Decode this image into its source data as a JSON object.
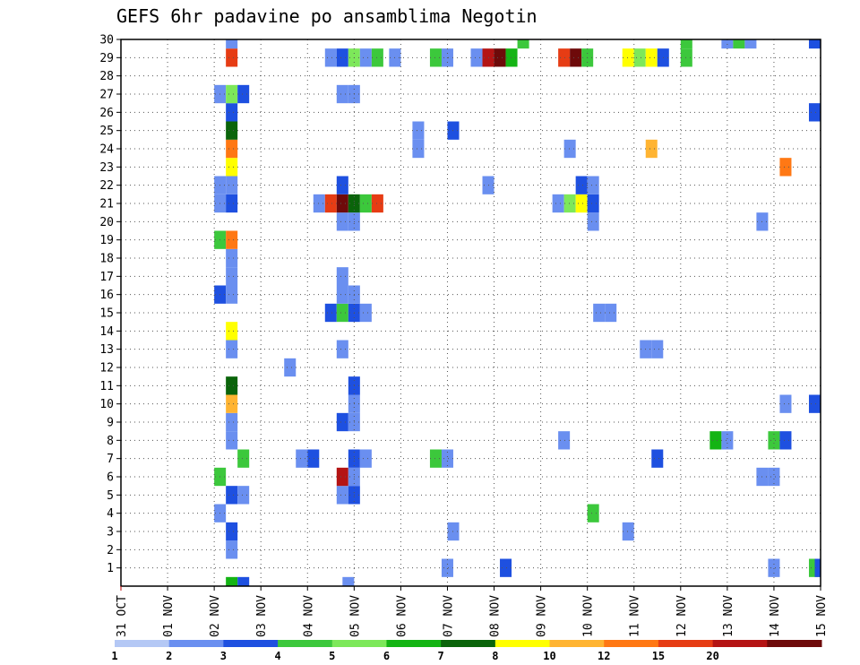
{
  "chart_data": {
    "type": "heatmap",
    "title": "GEFS 6hr padavine po ansamblima Negotin",
    "xlabel": "",
    "ylabel": "",
    "x_ticks": [
      "31 OCT",
      "01 NOV",
      "02 NOV",
      "03 NOV",
      "04 NOV",
      "05 NOV",
      "06 NOV",
      "07 NOV",
      "08 NOV",
      "09 NOV",
      "10 NOV",
      "11 NOV",
      "12 NOV",
      "13 NOV",
      "14 NOV",
      "15 NOV"
    ],
    "y_ticks": [
      1,
      2,
      3,
      4,
      5,
      6,
      7,
      8,
      9,
      10,
      11,
      12,
      13,
      14,
      15,
      16,
      17,
      18,
      19,
      20,
      21,
      22,
      23,
      24,
      25,
      26,
      27,
      28,
      29,
      30
    ],
    "x_range_days": [
      0,
      15
    ],
    "y_range": [
      0,
      30
    ],
    "grid": true,
    "colorbar": {
      "levels": [
        "1",
        "2",
        "3",
        "4",
        "5",
        "6",
        "7",
        "8",
        "10",
        "12",
        "15",
        "20",
        ""
      ],
      "colors": [
        "#b4c8f5",
        "#6a8ff0",
        "#1e50e0",
        "#3cc83c",
        "#7de85a",
        "#14b414",
        "#0a640a",
        "#ffff00",
        "#ffb432",
        "#ff7814",
        "#e63c14",
        "#b41414",
        "#6e0a0a"
      ]
    },
    "cells": [
      {
        "t": 2.375,
        "m": 0,
        "c": 5
      },
      {
        "t": 2.625,
        "m": 0,
        "c": 2
      },
      {
        "t": 4.875,
        "m": 0,
        "c": 1
      },
      {
        "t": 7.0,
        "m": 1,
        "c": 1
      },
      {
        "t": 8.25,
        "m": 1,
        "c": 2
      },
      {
        "t": 14.0,
        "m": 1,
        "c": 1
      },
      {
        "t": 14.875,
        "m": 1,
        "c": 3
      },
      {
        "t": 15.0,
        "m": 1,
        "c": 2
      },
      {
        "t": 2.375,
        "m": 2,
        "c": 1
      },
      {
        "t": 2.375,
        "m": 3,
        "c": 2
      },
      {
        "t": 7.125,
        "m": 3,
        "c": 1
      },
      {
        "t": 10.875,
        "m": 3,
        "c": 1
      },
      {
        "t": 2.125,
        "m": 4,
        "c": 1
      },
      {
        "t": 10.125,
        "m": 4,
        "c": 3
      },
      {
        "t": 2.375,
        "m": 5,
        "c": 2
      },
      {
        "t": 2.625,
        "m": 5,
        "c": 1
      },
      {
        "t": 4.75,
        "m": 5,
        "c": 1
      },
      {
        "t": 5.0,
        "m": 5,
        "c": 2
      },
      {
        "t": 2.125,
        "m": 6,
        "c": 3
      },
      {
        "t": 4.75,
        "m": 6,
        "c": 11
      },
      {
        "t": 5.0,
        "m": 6,
        "c": 1
      },
      {
        "t": 13.75,
        "m": 6,
        "c": 1
      },
      {
        "t": 14.0,
        "m": 6,
        "c": 1
      },
      {
        "t": 2.625,
        "m": 7,
        "c": 3
      },
      {
        "t": 3.875,
        "m": 7,
        "c": 1
      },
      {
        "t": 4.125,
        "m": 7,
        "c": 2
      },
      {
        "t": 5.0,
        "m": 7,
        "c": 2
      },
      {
        "t": 5.25,
        "m": 7,
        "c": 1
      },
      {
        "t": 6.75,
        "m": 7,
        "c": 3
      },
      {
        "t": 7.0,
        "m": 7,
        "c": 1
      },
      {
        "t": 11.5,
        "m": 7,
        "c": 2
      },
      {
        "t": 2.375,
        "m": 8,
        "c": 1
      },
      {
        "t": 9.5,
        "m": 8,
        "c": 1
      },
      {
        "t": 12.75,
        "m": 8,
        "c": 5
      },
      {
        "t": 13.0,
        "m": 8,
        "c": 1
      },
      {
        "t": 14.0,
        "m": 8,
        "c": 3
      },
      {
        "t": 14.25,
        "m": 8,
        "c": 2
      },
      {
        "t": 2.375,
        "m": 9,
        "c": 1
      },
      {
        "t": 4.75,
        "m": 9,
        "c": 2
      },
      {
        "t": 5.0,
        "m": 9,
        "c": 1
      },
      {
        "t": 2.375,
        "m": 10,
        "c": 8
      },
      {
        "t": 5.0,
        "m": 10,
        "c": 1
      },
      {
        "t": 14.25,
        "m": 10,
        "c": 1
      },
      {
        "t": 14.875,
        "m": 10,
        "c": 2
      },
      {
        "t": 2.375,
        "m": 11,
        "c": 6
      },
      {
        "t": 5.0,
        "m": 11,
        "c": 2
      },
      {
        "t": 3.625,
        "m": 12,
        "c": 1
      },
      {
        "t": 2.375,
        "m": 13,
        "c": 1
      },
      {
        "t": 4.75,
        "m": 13,
        "c": 1
      },
      {
        "t": 11.25,
        "m": 13,
        "c": 1
      },
      {
        "t": 11.5,
        "m": 13,
        "c": 1
      },
      {
        "t": 2.375,
        "m": 14,
        "c": 7
      },
      {
        "t": 4.5,
        "m": 15,
        "c": 2
      },
      {
        "t": 4.75,
        "m": 15,
        "c": 3
      },
      {
        "t": 5.0,
        "m": 15,
        "c": 2
      },
      {
        "t": 5.25,
        "m": 15,
        "c": 1
      },
      {
        "t": 10.25,
        "m": 15,
        "c": 1
      },
      {
        "t": 10.5,
        "m": 15,
        "c": 1
      },
      {
        "t": 2.125,
        "m": 16,
        "c": 2
      },
      {
        "t": 2.375,
        "m": 16,
        "c": 1
      },
      {
        "t": 4.75,
        "m": 16,
        "c": 1
      },
      {
        "t": 5.0,
        "m": 16,
        "c": 1
      },
      {
        "t": 2.375,
        "m": 17,
        "c": 1
      },
      {
        "t": 4.75,
        "m": 17,
        "c": 1
      },
      {
        "t": 2.375,
        "m": 18,
        "c": 1
      },
      {
        "t": 2.125,
        "m": 19,
        "c": 3
      },
      {
        "t": 2.375,
        "m": 19,
        "c": 9
      },
      {
        "t": 4.75,
        "m": 20,
        "c": 1
      },
      {
        "t": 5.0,
        "m": 20,
        "c": 1
      },
      {
        "t": 10.125,
        "m": 20,
        "c": 1
      },
      {
        "t": 13.75,
        "m": 20,
        "c": 1
      },
      {
        "t": 2.125,
        "m": 21,
        "c": 1
      },
      {
        "t": 2.375,
        "m": 21,
        "c": 2
      },
      {
        "t": 4.25,
        "m": 21,
        "c": 1
      },
      {
        "t": 4.5,
        "m": 21,
        "c": 10
      },
      {
        "t": 4.75,
        "m": 21,
        "c": 12
      },
      {
        "t": 5.0,
        "m": 21,
        "c": 6
      },
      {
        "t": 5.25,
        "m": 21,
        "c": 3
      },
      {
        "t": 5.5,
        "m": 21,
        "c": 10
      },
      {
        "t": 9.375,
        "m": 21,
        "c": 1
      },
      {
        "t": 9.625,
        "m": 21,
        "c": 4
      },
      {
        "t": 9.875,
        "m": 21,
        "c": 7
      },
      {
        "t": 10.125,
        "m": 21,
        "c": 2
      },
      {
        "t": 2.125,
        "m": 22,
        "c": 1
      },
      {
        "t": 2.375,
        "m": 22,
        "c": 1
      },
      {
        "t": 4.75,
        "m": 22,
        "c": 2
      },
      {
        "t": 7.875,
        "m": 22,
        "c": 1
      },
      {
        "t": 9.875,
        "m": 22,
        "c": 2
      },
      {
        "t": 10.125,
        "m": 22,
        "c": 1
      },
      {
        "t": 2.375,
        "m": 23,
        "c": 7
      },
      {
        "t": 14.25,
        "m": 23,
        "c": 9
      },
      {
        "t": 2.375,
        "m": 24,
        "c": 9
      },
      {
        "t": 6.375,
        "m": 24,
        "c": 1
      },
      {
        "t": 9.625,
        "m": 24,
        "c": 1
      },
      {
        "t": 11.375,
        "m": 24,
        "c": 8
      },
      {
        "t": 2.375,
        "m": 25,
        "c": 6
      },
      {
        "t": 6.375,
        "m": 25,
        "c": 1
      },
      {
        "t": 7.125,
        "m": 25,
        "c": 2
      },
      {
        "t": 2.375,
        "m": 26,
        "c": 2
      },
      {
        "t": 14.875,
        "m": 26,
        "c": 2
      },
      {
        "t": 2.125,
        "m": 27,
        "c": 1
      },
      {
        "t": 2.375,
        "m": 27,
        "c": 4
      },
      {
        "t": 2.625,
        "m": 27,
        "c": 2
      },
      {
        "t": 4.75,
        "m": 27,
        "c": 1
      },
      {
        "t": 5.0,
        "m": 27,
        "c": 1
      },
      {
        "t": 2.375,
        "m": 29,
        "c": 10
      },
      {
        "t": 4.5,
        "m": 29,
        "c": 1
      },
      {
        "t": 4.75,
        "m": 29,
        "c": 2
      },
      {
        "t": 5.0,
        "m": 29,
        "c": 4
      },
      {
        "t": 5.25,
        "m": 29,
        "c": 1
      },
      {
        "t": 5.5,
        "m": 29,
        "c": 3
      },
      {
        "t": 5.875,
        "m": 29,
        "c": 1
      },
      {
        "t": 6.75,
        "m": 29,
        "c": 3
      },
      {
        "t": 7.0,
        "m": 29,
        "c": 1
      },
      {
        "t": 7.625,
        "m": 29,
        "c": 1
      },
      {
        "t": 7.875,
        "m": 29,
        "c": 11
      },
      {
        "t": 8.125,
        "m": 29,
        "c": 12
      },
      {
        "t": 8.375,
        "m": 29,
        "c": 5
      },
      {
        "t": 9.5,
        "m": 29,
        "c": 10
      },
      {
        "t": 9.75,
        "m": 29,
        "c": 12
      },
      {
        "t": 10.0,
        "m": 29,
        "c": 3
      },
      {
        "t": 10.875,
        "m": 29,
        "c": 7
      },
      {
        "t": 11.125,
        "m": 29,
        "c": 4
      },
      {
        "t": 11.375,
        "m": 29,
        "c": 7
      },
      {
        "t": 11.625,
        "m": 29,
        "c": 2
      },
      {
        "t": 12.125,
        "m": 29,
        "c": 3
      },
      {
        "t": 2.375,
        "m": 30,
        "c": 1
      },
      {
        "t": 8.625,
        "m": 30,
        "c": 3
      },
      {
        "t": 12.125,
        "m": 30,
        "c": 3
      },
      {
        "t": 13.0,
        "m": 30,
        "c": 1
      },
      {
        "t": 13.25,
        "m": 30,
        "c": 3
      },
      {
        "t": 13.5,
        "m": 30,
        "c": 1
      },
      {
        "t": 14.875,
        "m": 30,
        "c": 2
      }
    ]
  }
}
